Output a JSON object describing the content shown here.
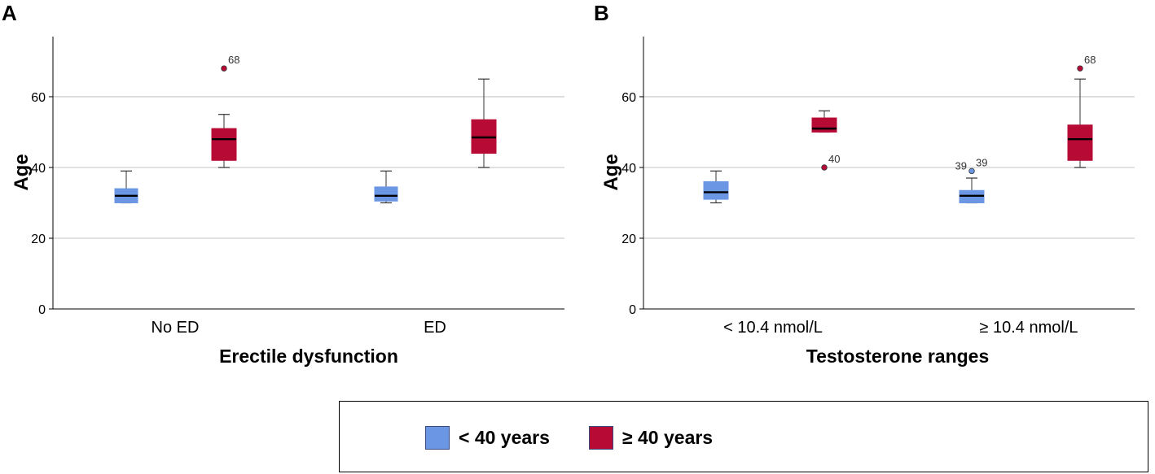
{
  "figure": {
    "legend_title": ""
  },
  "colors": {
    "under40": "#6a96e4",
    "over40": "#b70a35",
    "grid": "#cfcfcf",
    "axis": "#000000"
  },
  "legend": [
    {
      "key": "under40",
      "label": "< 40 years"
    },
    {
      "key": "over40",
      "label": "≥ 40 years"
    }
  ],
  "chart_data": [
    {
      "panel": "A",
      "type": "boxplot",
      "title": "",
      "xlabel": "Erectile dysfunction",
      "ylabel": "Age",
      "ylim": [
        0,
        77
      ],
      "yticks": [
        0,
        20,
        40,
        60
      ],
      "grid": true,
      "categories": [
        "No ED",
        "ED"
      ],
      "series": [
        {
          "name": "< 40 years",
          "color_key": "under40",
          "boxes": [
            {
              "category": "No ED",
              "min": 30,
              "q1": 30,
              "median": 32,
              "q3": 34,
              "max": 39,
              "outliers": []
            },
            {
              "category": "ED",
              "min": 30,
              "q1": 30.5,
              "median": 32,
              "q3": 34.5,
              "max": 39,
              "outliers": []
            }
          ]
        },
        {
          "name": "≥ 40 years",
          "color_key": "over40",
          "boxes": [
            {
              "category": "No ED",
              "min": 40,
              "q1": 42,
              "median": 48,
              "q3": 51,
              "max": 55,
              "outliers": [
                {
                  "value": 68,
                  "label": "68"
                }
              ]
            },
            {
              "category": "ED",
              "min": 40,
              "q1": 44,
              "median": 48.5,
              "q3": 53.5,
              "max": 65,
              "outliers": []
            }
          ]
        }
      ]
    },
    {
      "panel": "B",
      "type": "boxplot",
      "title": "",
      "xlabel": "Testosterone ranges",
      "ylabel": "Age",
      "ylim": [
        0,
        77
      ],
      "yticks": [
        0,
        20,
        40,
        60
      ],
      "grid": true,
      "categories": [
        "< 10.4 nmol/L",
        "≥ 10.4 nmol/L"
      ],
      "series": [
        {
          "name": "< 40 years",
          "color_key": "under40",
          "boxes": [
            {
              "category": "< 10.4 nmol/L",
              "min": 30,
              "q1": 31,
              "median": 33,
              "q3": 36,
              "max": 39,
              "outliers": []
            },
            {
              "category": "≥ 10.4 nmol/L",
              "min": 30,
              "q1": 30,
              "median": 32,
              "q3": 33.5,
              "max": 37,
              "outliers": [
                {
                  "value": 39,
                  "label": "39",
                  "label2": "39"
                }
              ]
            }
          ]
        },
        {
          "name": "≥ 40 years",
          "color_key": "over40",
          "boxes": [
            {
              "category": "< 10.4 nmol/L",
              "min": 50,
              "q1": 50,
              "median": 51,
              "q3": 54,
              "max": 56,
              "outliers": [
                {
                  "value": 40,
                  "label": "40"
                }
              ]
            },
            {
              "category": "≥ 10.4 nmol/L",
              "min": 40,
              "q1": 42,
              "median": 48,
              "q3": 52,
              "max": 65,
              "outliers": [
                {
                  "value": 68,
                  "label": "68"
                }
              ]
            }
          ]
        }
      ]
    }
  ]
}
